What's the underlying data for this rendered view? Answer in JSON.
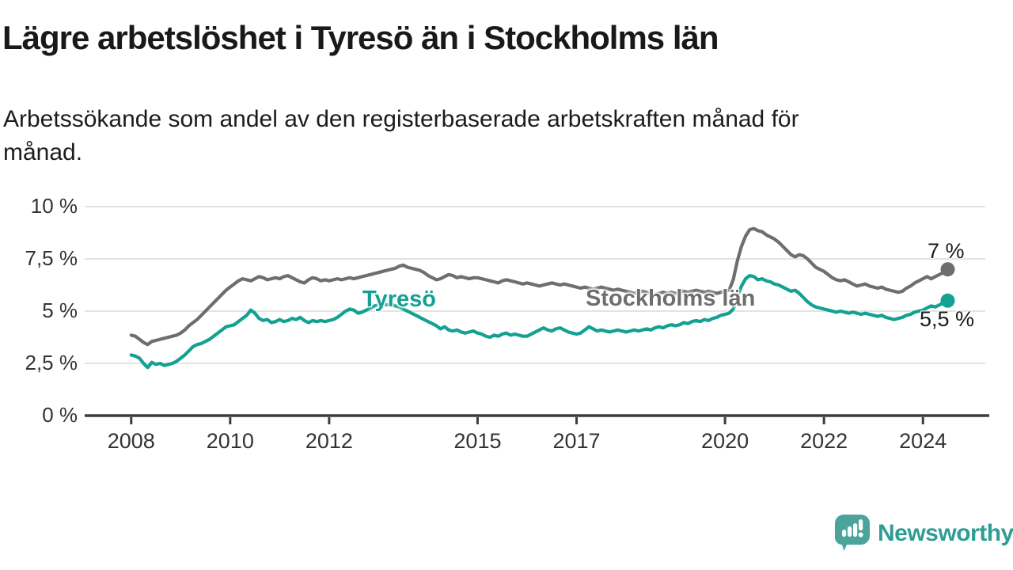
{
  "chart_data": {
    "type": "line",
    "title": "Lägre arbetslöshet i Tyresö än i Stockholms län",
    "subtitle": "Arbetssökande som andel av den registerbaserade arbetskraften månad för månad.",
    "subtitle_lines": [
      "Arbetssökande som andel av den registerbaserade arbetskraften månad för",
      "månad."
    ],
    "x_unit": "year (monthly data)",
    "x_start": 2008.0,
    "x_step": 0.08333,
    "xlim": [
      2007.06,
      2025.26
    ],
    "ylim": [
      0,
      10
    ],
    "grid": true,
    "y_ticks": [
      {
        "value": 0,
        "label": "0 %"
      },
      {
        "value": 2.5,
        "label": "2,5 %"
      },
      {
        "value": 5,
        "label": "5 %"
      },
      {
        "value": 7.5,
        "label": "7,5 %"
      },
      {
        "value": 10,
        "label": "10 %"
      }
    ],
    "x_ticks": [
      {
        "value": 2008,
        "label": "2008"
      },
      {
        "value": 2010,
        "label": "2010"
      },
      {
        "value": 2012,
        "label": "2012"
      },
      {
        "value": 2015,
        "label": "2015"
      },
      {
        "value": 2017,
        "label": "2017"
      },
      {
        "value": 2020,
        "label": "2020"
      },
      {
        "value": 2022,
        "label": "2022"
      },
      {
        "value": 2024,
        "label": "2024"
      }
    ],
    "series": [
      {
        "name": "Stockholms län",
        "color": "#6e6e6e",
        "end_label": "7 %",
        "end_value": 7.0,
        "values": [
          3.85,
          3.8,
          3.65,
          3.5,
          3.4,
          3.55,
          3.6,
          3.65,
          3.7,
          3.75,
          3.8,
          3.85,
          3.95,
          4.1,
          4.3,
          4.45,
          4.6,
          4.8,
          5.0,
          5.2,
          5.4,
          5.6,
          5.8,
          6.0,
          6.15,
          6.3,
          6.45,
          6.55,
          6.5,
          6.45,
          6.55,
          6.65,
          6.6,
          6.5,
          6.55,
          6.6,
          6.55,
          6.65,
          6.7,
          6.6,
          6.5,
          6.4,
          6.35,
          6.5,
          6.6,
          6.55,
          6.45,
          6.5,
          6.45,
          6.5,
          6.55,
          6.5,
          6.55,
          6.6,
          6.55,
          6.6,
          6.65,
          6.7,
          6.75,
          6.8,
          6.85,
          6.9,
          6.95,
          7.0,
          7.05,
          7.15,
          7.2,
          7.1,
          7.05,
          7.0,
          6.95,
          6.85,
          6.7,
          6.6,
          6.5,
          6.55,
          6.65,
          6.75,
          6.7,
          6.6,
          6.65,
          6.6,
          6.55,
          6.6,
          6.6,
          6.55,
          6.5,
          6.45,
          6.4,
          6.35,
          6.45,
          6.5,
          6.45,
          6.4,
          6.35,
          6.3,
          6.35,
          6.3,
          6.25,
          6.2,
          6.25,
          6.3,
          6.35,
          6.3,
          6.25,
          6.3,
          6.25,
          6.2,
          6.15,
          6.1,
          6.15,
          6.1,
          6.05,
          6.1,
          6.15,
          6.1,
          6.05,
          6.0,
          6.05,
          6.0,
          5.95,
          5.9,
          5.85,
          5.9,
          5.95,
          5.9,
          5.85,
          5.8,
          5.85,
          5.9,
          5.85,
          5.9,
          5.85,
          5.9,
          5.95,
          5.9,
          5.95,
          6.0,
          5.95,
          5.9,
          5.95,
          5.9,
          5.85,
          5.9,
          5.95,
          6.0,
          6.5,
          7.4,
          8.1,
          8.6,
          8.9,
          8.95,
          8.85,
          8.8,
          8.65,
          8.55,
          8.45,
          8.3,
          8.1,
          7.9,
          7.7,
          7.6,
          7.7,
          7.65,
          7.5,
          7.3,
          7.1,
          7.0,
          6.9,
          6.75,
          6.6,
          6.5,
          6.45,
          6.5,
          6.4,
          6.3,
          6.2,
          6.25,
          6.3,
          6.2,
          6.15,
          6.1,
          6.15,
          6.05,
          6.0,
          5.95,
          5.9,
          5.95,
          6.1,
          6.2,
          6.35,
          6.45,
          6.55,
          6.65,
          6.55,
          6.65,
          6.75,
          6.85,
          7.0
        ]
      },
      {
        "name": "Tyresö",
        "color": "#12a192",
        "end_label": "5,5 %",
        "end_value": 5.5,
        "values": [
          2.9,
          2.85,
          2.75,
          2.5,
          2.3,
          2.55,
          2.45,
          2.5,
          2.4,
          2.45,
          2.5,
          2.6,
          2.75,
          2.9,
          3.1,
          3.3,
          3.4,
          3.45,
          3.55,
          3.65,
          3.8,
          3.95,
          4.1,
          4.25,
          4.3,
          4.35,
          4.5,
          4.65,
          4.8,
          5.05,
          4.9,
          4.65,
          4.55,
          4.6,
          4.45,
          4.5,
          4.6,
          4.5,
          4.55,
          4.65,
          4.6,
          4.7,
          4.55,
          4.45,
          4.55,
          4.5,
          4.55,
          4.5,
          4.55,
          4.6,
          4.7,
          4.85,
          5.0,
          5.1,
          5.05,
          4.9,
          4.95,
          5.05,
          5.15,
          5.25,
          5.3,
          5.35,
          5.3,
          5.35,
          5.25,
          5.2,
          5.1,
          5.0,
          4.9,
          4.8,
          4.7,
          4.6,
          4.5,
          4.4,
          4.3,
          4.15,
          4.25,
          4.1,
          4.05,
          4.1,
          4.0,
          3.95,
          4.0,
          4.05,
          3.95,
          3.9,
          3.8,
          3.75,
          3.85,
          3.8,
          3.9,
          3.95,
          3.85,
          3.9,
          3.85,
          3.8,
          3.8,
          3.9,
          4.0,
          4.1,
          4.2,
          4.1,
          4.05,
          4.15,
          4.2,
          4.1,
          4.0,
          3.95,
          3.9,
          3.95,
          4.1,
          4.25,
          4.15,
          4.05,
          4.1,
          4.05,
          4.0,
          4.05,
          4.1,
          4.05,
          4.0,
          4.05,
          4.1,
          4.05,
          4.1,
          4.15,
          4.1,
          4.2,
          4.25,
          4.2,
          4.3,
          4.35,
          4.3,
          4.35,
          4.45,
          4.4,
          4.5,
          4.55,
          4.5,
          4.6,
          4.55,
          4.65,
          4.7,
          4.8,
          4.85,
          4.9,
          5.1,
          5.7,
          6.2,
          6.55,
          6.7,
          6.65,
          6.5,
          6.55,
          6.45,
          6.4,
          6.3,
          6.25,
          6.15,
          6.05,
          5.95,
          6.0,
          5.85,
          5.65,
          5.45,
          5.3,
          5.2,
          5.15,
          5.1,
          5.05,
          5.0,
          4.95,
          5.0,
          4.95,
          4.9,
          4.95,
          4.9,
          4.85,
          4.9,
          4.85,
          4.8,
          4.75,
          4.8,
          4.7,
          4.65,
          4.6,
          4.65,
          4.7,
          4.8,
          4.85,
          4.95,
          5.0,
          5.05,
          5.15,
          5.25,
          5.2,
          5.3,
          5.4,
          5.5
        ]
      }
    ],
    "legend_position": "inline-labels",
    "colors": {
      "grid": "#e3e3e3",
      "axis": "#3c3c3c",
      "text": "#333333"
    }
  },
  "branding": {
    "name": "Newsworthy"
  }
}
